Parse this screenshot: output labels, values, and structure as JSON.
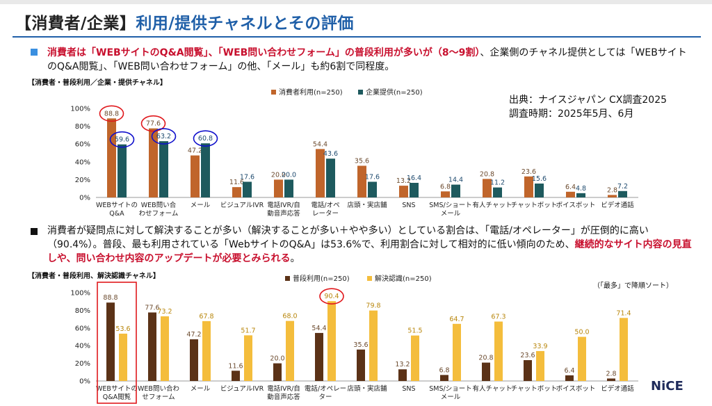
{
  "header": {
    "title_part1": "【消費者/企業】",
    "title_part2": "利用/提供チャネルとその評価"
  },
  "bullet1": {
    "red": "消費者は「WEBサイトのQ&A閲覧」、「WEB問い合わせフォーム」の普段利用が多いが（8〜9割）",
    "text1": "、企業側のチャネル提供としては「WEBサイトのQ&A閲覧」、「WEB問い合わせフォーム」の他、「メール」も約6割で同程度。"
  },
  "bullet2": {
    "text1": "消費者が疑問点に対して解決することが多い（解決することが多い＋やや多い）としている割合は、「電話/オペレーター」が圧倒的に高い（90.4%）。普段、最も利用されている「WebサイトのQ&A」は53.6%で、利用割合に対して相対的に低い傾向のため、",
    "red": "継続的なサイト内容の見直しや、問い合わせ内容のアップデートが必要とみられる",
    "text2": "。"
  },
  "source": {
    "line1": "出典：ナイスジャパン CX調査2025",
    "line2": "調査時期：2025年5月、6月"
  },
  "brand": {
    "logo_text": "NiCE"
  },
  "colors": {
    "brown": "#c0652b",
    "teal": "#1e5a5e",
    "darkbrown": "#5b3217",
    "yellow": "#f4bd3c",
    "highlight_red": "#e0181c",
    "highlight_blue": "#1010cc",
    "title_blue": "#1f5fa8"
  },
  "chart_data": [
    {
      "type": "bar",
      "title": "【消費者・普段利用／企業・提供チャネル】",
      "categories": [
        "WEBサイトの\nQ&A",
        "WEB問い合\nわせフォーム",
        "メール",
        "ビジュアルIVR",
        "電話IVR/自\n動音声応答",
        "電話/オペ\nレーター",
        "店頭・実店舗",
        "SNS",
        "SMS/ショート\nメール",
        "有人チャット",
        "チャットボット",
        "ボイスボット",
        "ビデオ通話"
      ],
      "series": [
        {
          "name": "消費者利用(n=250)",
          "values": [
            88.8,
            77.6,
            47.2,
            11.6,
            20.0,
            54.4,
            35.6,
            13.2,
            6.8,
            20.8,
            23.6,
            6.4,
            2.8
          ]
        },
        {
          "name": "企業提供(n=250)",
          "values": [
            59.6,
            63.2,
            60.8,
            17.6,
            20.0,
            43.6,
            17.6,
            16.4,
            14.4,
            11.2,
            15.6,
            4.8,
            7.2
          ]
        }
      ],
      "ylim": [
        0,
        100
      ],
      "yticks": [
        "0%",
        "20%",
        "40%",
        "60%",
        "80%",
        "100%"
      ],
      "legend": "top-center",
      "grid": false,
      "highlights": {
        "red_circles": [
          "0:0",
          "0:1"
        ],
        "blue_circles": [
          "1:0",
          "1:1",
          "1:2"
        ]
      }
    },
    {
      "type": "bar",
      "title": "【消費者・普段利用、解決認識チャネル】",
      "note": "（「最多」で降順ソート）",
      "categories": [
        "WEBサイトの\nQ&A閲覧",
        "WEB問い合わ\nせフォーム",
        "メール",
        "ビジュアルIVR",
        "電話IVR/自\n動音声応答",
        "電話/オペレー\nター",
        "店頭・実店舗",
        "SNS",
        "SMS/ショート\nメール",
        "有人チャット",
        "チャットボット",
        "ボイスボット",
        "ビデオ通話"
      ],
      "series": [
        {
          "name": "普段利用(n=250)",
          "values": [
            88.8,
            77.6,
            47.2,
            11.6,
            20.0,
            54.4,
            35.6,
            13.2,
            6.8,
            20.8,
            23.6,
            6.4,
            2.8
          ]
        },
        {
          "name": "解決認識(n=250)",
          "values": [
            53.6,
            73.2,
            67.8,
            51.7,
            68.0,
            90.4,
            79.8,
            51.5,
            64.7,
            67.3,
            33.9,
            50.0,
            71.4
          ]
        }
      ],
      "ylim": [
        0,
        100
      ],
      "yticks": [
        "0%",
        "20%",
        "40%",
        "60%",
        "80%",
        "100%"
      ],
      "legend": "top-center",
      "grid": false,
      "highlights": {
        "red_circles": [
          "1:5"
        ],
        "red_box": [
          0
        ]
      }
    }
  ]
}
